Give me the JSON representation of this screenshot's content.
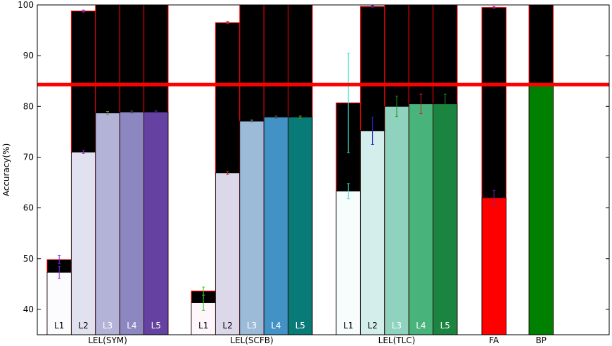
{
  "chart_data": {
    "type": "bar",
    "title": "",
    "xlabel": "",
    "ylabel": "Accuracy(%)",
    "ylim": [
      35,
      100
    ],
    "yticks": [
      40,
      50,
      60,
      70,
      80,
      90,
      100
    ],
    "grid": false,
    "reference_line": {
      "value": 84.3,
      "color": "#ff0000"
    },
    "groups": [
      {
        "label": "LEL(SYM)",
        "bars": [
          {
            "label": "L1",
            "test": 47.3,
            "train": 49.8,
            "err_test": 1.2,
            "err_train": 0.8,
            "color": "#fcfbfd",
            "err_color": "#8a2be2",
            "label_color": "#000000"
          },
          {
            "label": "L2",
            "test": 71.0,
            "train": 98.8,
            "err_test": 0.3,
            "err_train": 0.2,
            "color": "#e2e1ef",
            "err_color": "#8a2be2",
            "label_color": "#000000"
          },
          {
            "label": "L3",
            "test": 78.7,
            "train": 100,
            "err_test": 0.3,
            "err_train": 0,
            "color": "#b3b3d7",
            "err_color": "#6b8e23",
            "label_color": "#ffffff"
          },
          {
            "label": "L4",
            "test": 78.9,
            "train": 100,
            "err_test": 0.2,
            "err_train": 0,
            "color": "#8c87c1",
            "err_color": "#555555",
            "label_color": "#ffffff"
          },
          {
            "label": "L5",
            "test": 78.9,
            "train": 100,
            "err_test": 0.2,
            "err_train": 0,
            "color": "#6541a2",
            "err_color": "#4444aa",
            "label_color": "#ffffff"
          }
        ]
      },
      {
        "label": "LEL(SCFB)",
        "bars": [
          {
            "label": "L1",
            "test": 41.3,
            "train": 43.6,
            "err_test": 1.5,
            "err_train": 0.8,
            "color": "#fef6fa",
            "err_color": "#32cd32",
            "label_color": "#000000"
          },
          {
            "label": "L2",
            "test": 66.9,
            "train": 96.5,
            "err_test": 0.3,
            "err_train": 0.2,
            "color": "#dbd8ea",
            "err_color": "#b22222",
            "label_color": "#000000"
          },
          {
            "label": "L3",
            "test": 77.1,
            "train": 100,
            "err_test": 0.2,
            "err_train": 0,
            "color": "#9cbbd9",
            "err_color": "#888888",
            "label_color": "#ffffff"
          },
          {
            "label": "L4",
            "test": 77.9,
            "train": 100,
            "err_test": 0.2,
            "err_train": 0,
            "color": "#4292c6",
            "err_color": "#555555",
            "label_color": "#ffffff"
          },
          {
            "label": "L5",
            "test": 77.9,
            "train": 100,
            "err_test": 0.2,
            "err_train": 0,
            "color": "#087a78",
            "err_color": "#8b8b00",
            "label_color": "#ffffff"
          }
        ]
      },
      {
        "label": "LEL(TLC)",
        "bars": [
          {
            "label": "L1",
            "test": 63.3,
            "train": 80.7,
            "err_test": 1.5,
            "err_train": 9.8,
            "color": "#f7fcfd",
            "err_color": "#40e0d0",
            "label_color": "#000000"
          },
          {
            "label": "L2",
            "test": 75.2,
            "train": 99.7,
            "err_test": 2.7,
            "err_train": 0.2,
            "color": "#d4eeeb",
            "err_color": "#2020cc",
            "label_color": "#000000"
          },
          {
            "label": "L3",
            "test": 80.0,
            "train": 100,
            "err_test": 2.0,
            "err_train": 0,
            "color": "#8fd3bf",
            "err_color": "#228b22",
            "label_color": "#ffffff"
          },
          {
            "label": "L4",
            "test": 80.5,
            "train": 100,
            "err_test": 1.9,
            "err_train": 0,
            "color": "#48b47c",
            "err_color": "#cc2222",
            "label_color": "#ffffff"
          },
          {
            "label": "L5",
            "test": 80.5,
            "train": 100,
            "err_test": 1.9,
            "err_train": 0,
            "color": "#1b8440",
            "err_color": "#228b22",
            "label_color": "#ffffff"
          }
        ]
      },
      {
        "label": "FA",
        "bars": [
          {
            "label": "",
            "test": 62.0,
            "train": 99.5,
            "err_test": 1.5,
            "err_train": 0.2,
            "color": "#ff0000",
            "err_color": "#7a1fa2",
            "label_color": "#000000"
          }
        ]
      },
      {
        "label": "BP",
        "bars": [
          {
            "label": "",
            "test": 84.2,
            "train": 100,
            "err_test": 0,
            "err_train": 0,
            "color": "#008000",
            "err_color": "#008000",
            "label_color": "#000000"
          }
        ]
      }
    ]
  }
}
